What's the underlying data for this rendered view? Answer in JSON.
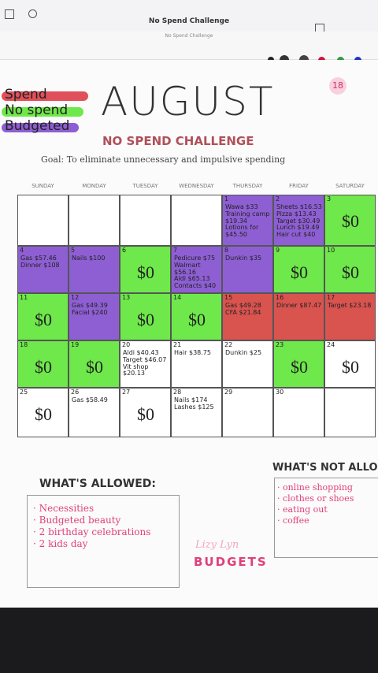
{
  "toolbar": {
    "title": "No Spend Challenge",
    "document_label": "No Spend Challenge"
  },
  "legend": [
    {
      "label": "Spend",
      "color": "#e0505a"
    },
    {
      "label": "No spend",
      "color": "#6ee84a"
    },
    {
      "label": "Budgeted",
      "color": "#8e5fd3"
    }
  ],
  "page_number": "18",
  "header": {
    "title": "AUGUST",
    "subtitle": "NO SPEND CHALLENGE",
    "goal": "Goal: To eliminate unnecessary and impulsive spending"
  },
  "weekdays": [
    "SUNDAY",
    "MONDAY",
    "TUESDAY",
    "WEDNESDAY",
    "THURSDAY",
    "FRIDAY",
    "SATURDAY"
  ],
  "weeks": [
    [
      {
        "color": "#ffffff"
      },
      {
        "color": "#ffffff"
      },
      {
        "color": "#ffffff"
      },
      {
        "color": "#ffffff"
      },
      {
        "day": "1",
        "entries": [
          "Wawa $33",
          "Training camp $19.34",
          "Lotions for $45.50"
        ],
        "color": "#8e5fd3"
      },
      {
        "day": "2",
        "entries": [
          "Sheets $16.53",
          "Pizza $13.43",
          "Target $30.49",
          "Lunch $19.49",
          "Hair cut $40"
        ],
        "color": "#8e5fd3"
      },
      {
        "day": "3",
        "entries": [
          "$0"
        ],
        "color": "#6ee84a"
      }
    ],
    [
      {
        "day": "4",
        "entries": [
          "Gas $57.46",
          "Dinner $108"
        ],
        "color": "#8e5fd3"
      },
      {
        "day": "5",
        "entries": [
          "Nails $100"
        ],
        "color": "#8e5fd3"
      },
      {
        "day": "6",
        "entries": [
          "$0"
        ],
        "color": "#6ee84a"
      },
      {
        "day": "7",
        "entries": [
          "Pedicure $75",
          "Walmart $56.16",
          "Aldi $65.13",
          "Contacts $40"
        ],
        "color": "#8e5fd3"
      },
      {
        "day": "8",
        "entries": [
          "Dunkin $35"
        ],
        "color": "#8e5fd3"
      },
      {
        "day": "9",
        "entries": [
          "$0"
        ],
        "color": "#6ee84a"
      },
      {
        "day": "10",
        "entries": [
          "$0"
        ],
        "color": "#6ee84a"
      }
    ],
    [
      {
        "day": "11",
        "entries": [
          "$0"
        ],
        "color": "#6ee84a"
      },
      {
        "day": "12",
        "entries": [
          "Gas $49.39",
          "Facial $240"
        ],
        "color": "#8e5fd3"
      },
      {
        "day": "13",
        "entries": [
          "$0"
        ],
        "color": "#6ee84a"
      },
      {
        "day": "14",
        "entries": [
          "$0"
        ],
        "color": "#6ee84a"
      },
      {
        "day": "15",
        "entries": [
          "Gas $49.28",
          "CFA $21.84"
        ],
        "color": "#d9534f"
      },
      {
        "day": "16",
        "entries": [
          "Dinner $87.47"
        ],
        "color": "#d9534f"
      },
      {
        "day": "17",
        "entries": [
          "Target $23.18"
        ],
        "color": "#d9534f"
      }
    ],
    [
      {
        "day": "18",
        "entries": [
          "$0"
        ],
        "color": "#6ee84a"
      },
      {
        "day": "19",
        "entries": [
          "$0"
        ],
        "color": "#6ee84a"
      },
      {
        "day": "20",
        "entries": [
          "Aldi $40.43",
          "Target $46.07",
          "Vit shop $20.13"
        ],
        "color": "#ffffff"
      },
      {
        "day": "21",
        "entries": [
          "Hair $38.75"
        ],
        "color": "#ffffff"
      },
      {
        "day": "22",
        "entries": [
          "Dunkin $25"
        ],
        "color": "#ffffff"
      },
      {
        "day": "23",
        "entries": [
          "$0"
        ],
        "color": "#6ee84a"
      },
      {
        "day": "24",
        "entries": [
          "$0"
        ],
        "color": "#ffffff"
      }
    ],
    [
      {
        "day": "25",
        "entries": [
          "$0"
        ],
        "color": "#ffffff"
      },
      {
        "day": "26",
        "entries": [
          "Gas $58.49"
        ],
        "color": "#ffffff"
      },
      {
        "day": "27",
        "entries": [
          "$0"
        ],
        "color": "#ffffff"
      },
      {
        "day": "28",
        "entries": [
          "Nails $174",
          "Lashes $125"
        ],
        "color": "#ffffff"
      },
      {
        "day": "29",
        "color": "#ffffff"
      },
      {
        "day": "30",
        "color": "#ffffff"
      },
      {
        "color": "#ffffff"
      }
    ]
  ],
  "allowed": {
    "title": "WHAT'S ALLOWED:",
    "items": [
      "Necessities",
      "Budgeted beauty",
      "2 birthday celebrations",
      "2 kids day"
    ]
  },
  "not_allowed": {
    "title": "WHAT'S NOT ALLOWED",
    "items": [
      "online shopping",
      "clothes or shoes",
      "eating out",
      "coffee"
    ]
  },
  "logo": {
    "script": "Lizy Lyn",
    "word": "BUDGETS"
  }
}
